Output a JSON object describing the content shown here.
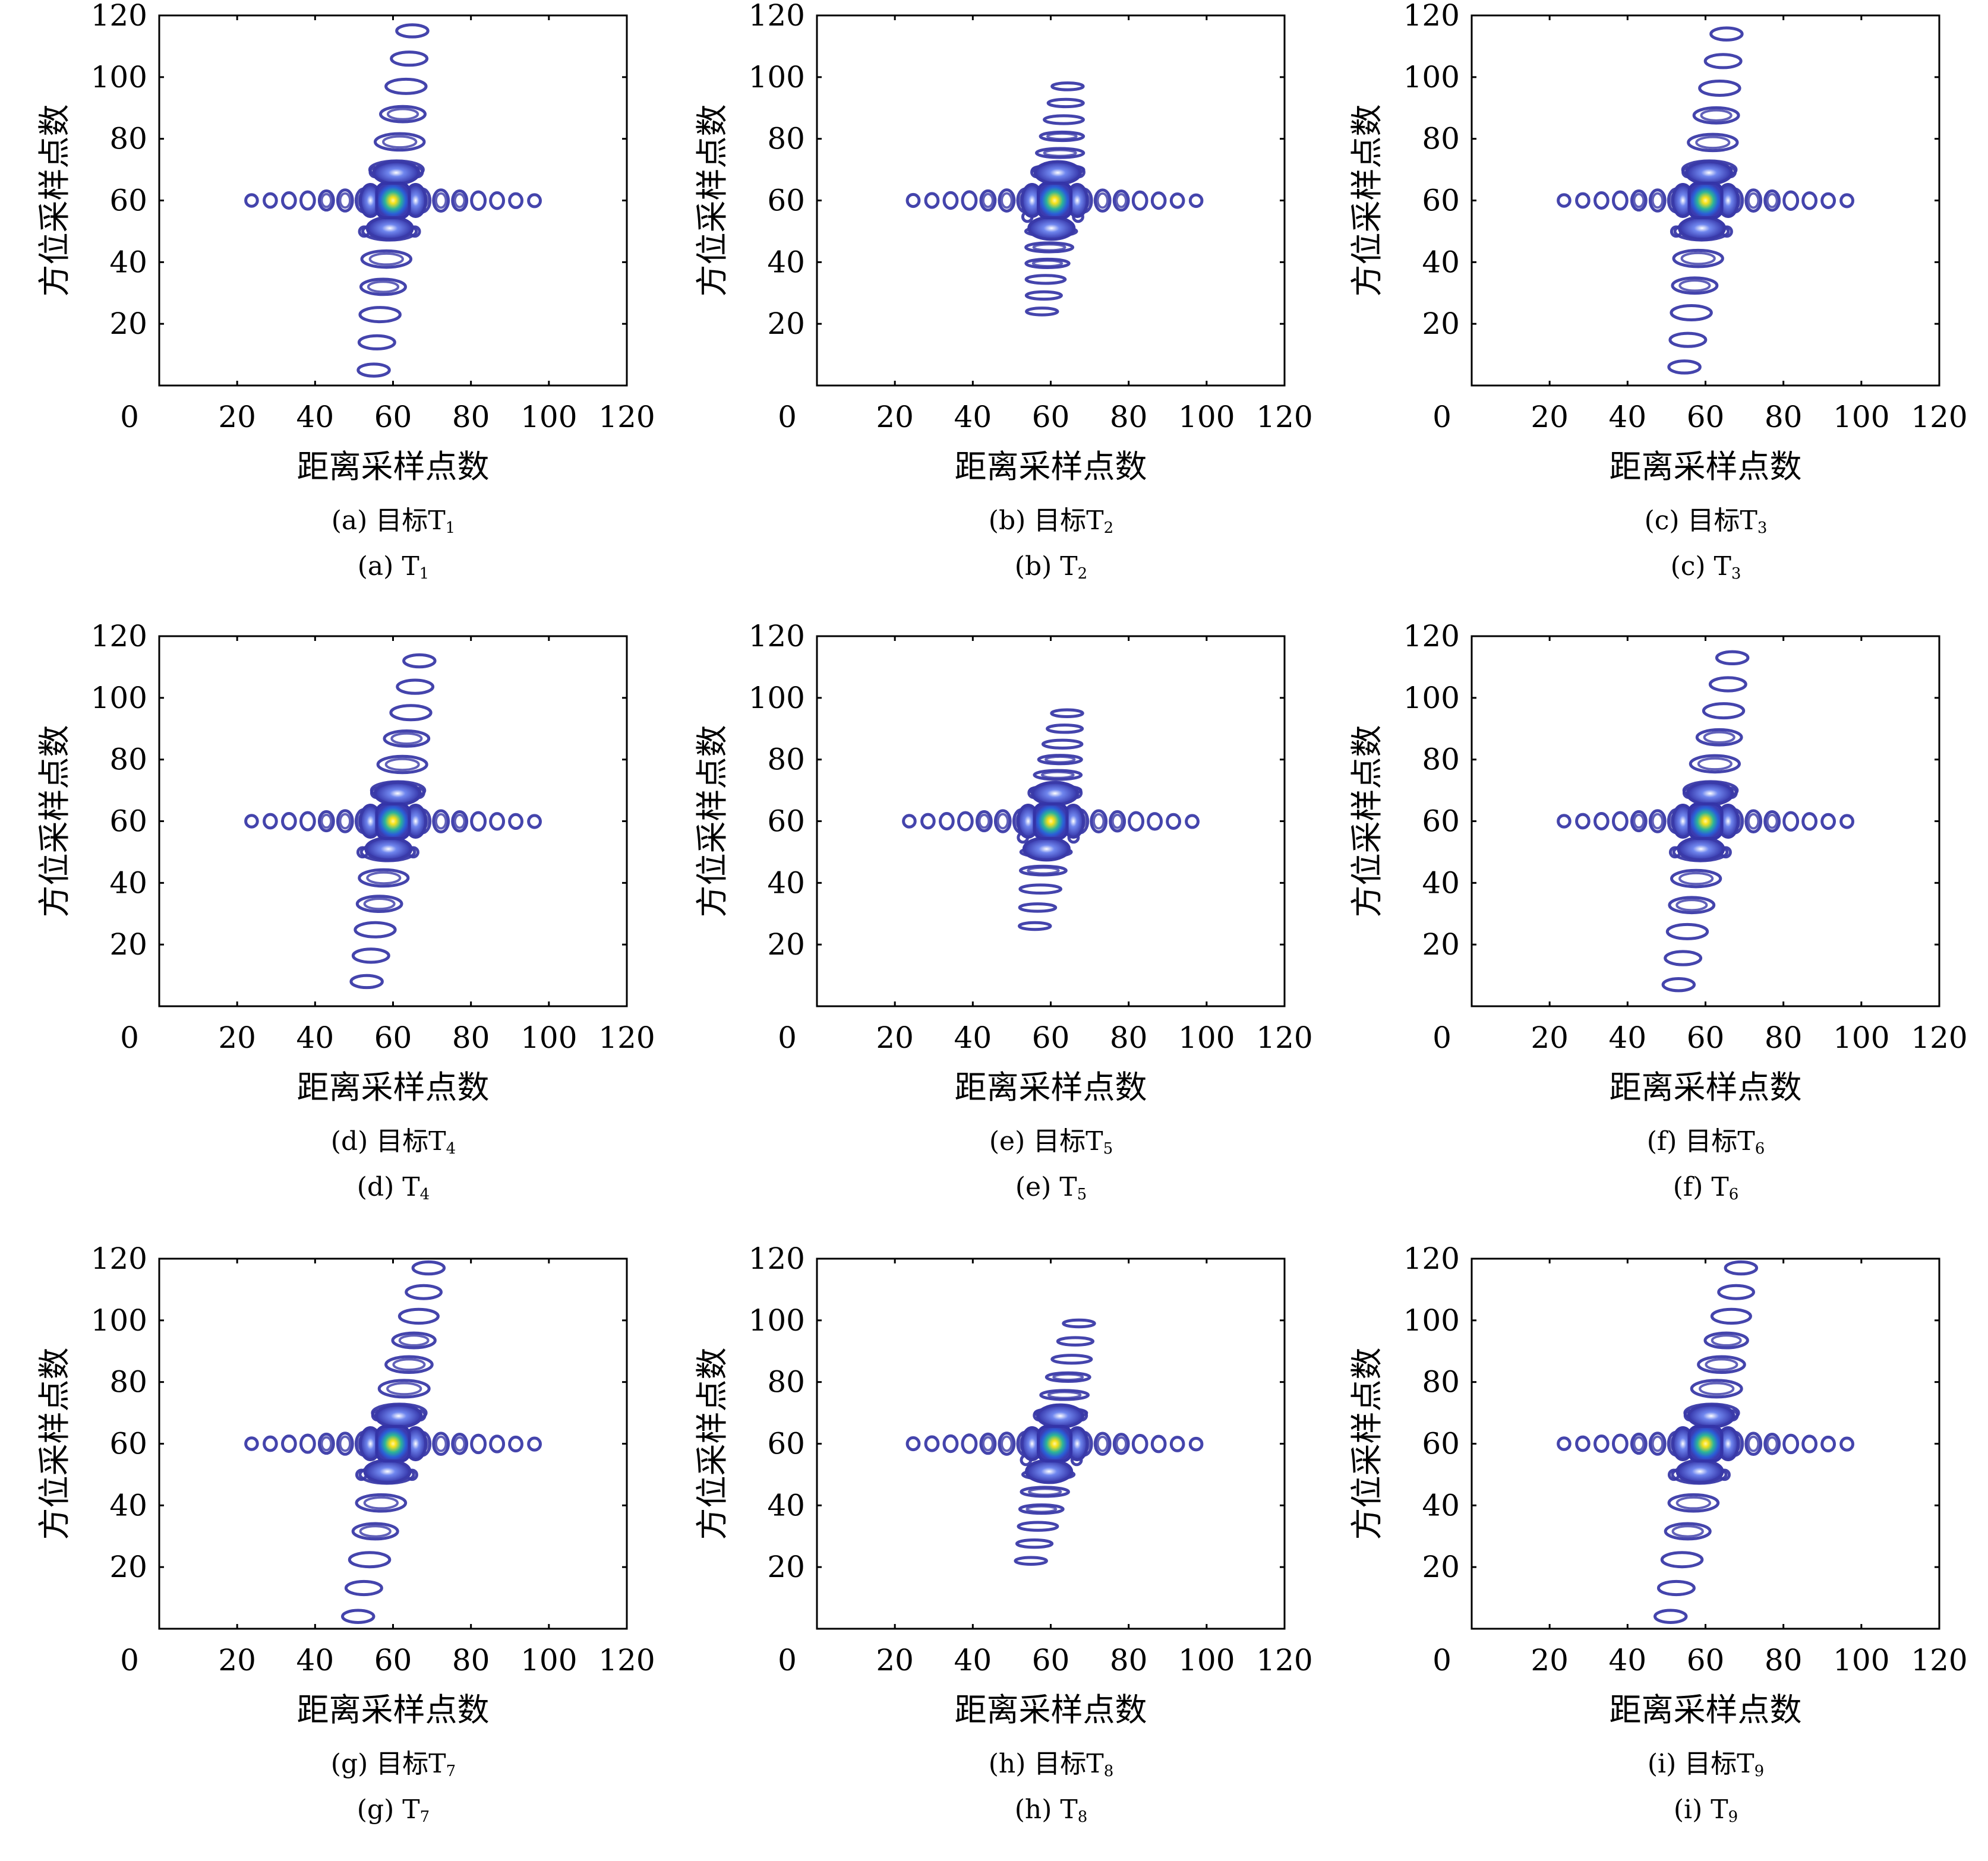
{
  "chart_data": [
    {
      "id": "a",
      "type": "contour",
      "caption_cn": "(a) 目标T",
      "caption_en": "(a) T",
      "sub": "1",
      "xlabel": "距离采样点数",
      "ylabel": "方位采样点数",
      "xlim": [
        0,
        120
      ],
      "ylim": [
        0,
        120
      ],
      "xticks": [
        "0",
        "20",
        "40",
        "60",
        "80",
        "100",
        "120"
      ],
      "yticks": [
        "20",
        "40",
        "60",
        "80",
        "100",
        "120"
      ],
      "peak": [
        60,
        60
      ],
      "azimuth_extent": [
        5,
        115
      ],
      "range_extent": [
        24,
        97
      ],
      "skew": 0.09
    },
    {
      "id": "b",
      "type": "contour",
      "caption_cn": "(b) 目标T",
      "caption_en": "(b) T",
      "sub": "2",
      "xlabel": "距离采样点数",
      "ylabel": "方位采样点数",
      "xlim": [
        0,
        120
      ],
      "ylim": [
        0,
        120
      ],
      "xticks": [
        "0",
        "20",
        "40",
        "60",
        "80",
        "100",
        "120"
      ],
      "yticks": [
        "20",
        "40",
        "60",
        "80",
        "100",
        "120"
      ],
      "peak": [
        61,
        60
      ],
      "azimuth_extent": [
        24,
        97
      ],
      "range_extent": [
        24,
        97
      ],
      "skew": 0.09
    },
    {
      "id": "c",
      "type": "contour",
      "caption_cn": "(c) 目标T",
      "caption_en": "(c) T",
      "sub": "3",
      "xlabel": "距离采样点数",
      "ylabel": "方位采样点数",
      "xlim": [
        0,
        120
      ],
      "ylim": [
        0,
        120
      ],
      "xticks": [
        "0",
        "20",
        "40",
        "60",
        "80",
        "100",
        "120"
      ],
      "yticks": [
        "20",
        "40",
        "60",
        "80",
        "100",
        "120"
      ],
      "peak": [
        60,
        60
      ],
      "azimuth_extent": [
        6,
        114
      ],
      "range_extent": [
        24,
        97
      ],
      "skew": 0.1
    },
    {
      "id": "d",
      "type": "contour",
      "caption_cn": "(d) 目标T",
      "caption_en": "(d) T",
      "sub": "4",
      "xlabel": "距离采样点数",
      "ylabel": "方位采样点数",
      "xlim": [
        0,
        120
      ],
      "ylim": [
        0,
        120
      ],
      "xticks": [
        "0",
        "20",
        "40",
        "60",
        "80",
        "100",
        "120"
      ],
      "yticks": [
        "20",
        "40",
        "60",
        "80",
        "100",
        "120"
      ],
      "peak": [
        60,
        60
      ],
      "azimuth_extent": [
        8,
        112
      ],
      "range_extent": [
        24,
        97
      ],
      "skew": 0.13
    },
    {
      "id": "e",
      "type": "contour",
      "caption_cn": "(e) 目标T",
      "caption_en": "(e) T",
      "sub": "5",
      "xlabel": "距离采样点数",
      "ylabel": "方位采样点数",
      "xlim": [
        0,
        120
      ],
      "ylim": [
        0,
        120
      ],
      "xticks": [
        "0",
        "20",
        "40",
        "60",
        "80",
        "100",
        "120"
      ],
      "yticks": [
        "20",
        "40",
        "60",
        "80",
        "100",
        "120"
      ],
      "peak": [
        60,
        60
      ],
      "azimuth_extent": [
        26,
        95
      ],
      "range_extent": [
        24,
        97
      ],
      "skew": 0.12
    },
    {
      "id": "f",
      "type": "contour",
      "caption_cn": "(f) 目标T",
      "caption_en": "(f) T",
      "sub": "6",
      "xlabel": "距离采样点数",
      "ylabel": "方位采样点数",
      "xlim": [
        0,
        120
      ],
      "ylim": [
        0,
        120
      ],
      "xticks": [
        "0",
        "20",
        "40",
        "60",
        "80",
        "100",
        "120"
      ],
      "yticks": [
        "20",
        "40",
        "60",
        "80",
        "100",
        "120"
      ],
      "peak": [
        60,
        60
      ],
      "azimuth_extent": [
        7,
        113
      ],
      "range_extent": [
        24,
        97
      ],
      "skew": 0.13
    },
    {
      "id": "g",
      "type": "contour",
      "caption_cn": "(g) 目标T",
      "caption_en": "(g) T",
      "sub": "7",
      "xlabel": "距离采样点数",
      "ylabel": "方位采样点数",
      "xlim": [
        0,
        120
      ],
      "ylim": [
        0,
        120
      ],
      "xticks": [
        "0",
        "20",
        "40",
        "60",
        "80",
        "100",
        "120"
      ],
      "yticks": [
        "20",
        "40",
        "60",
        "80",
        "100",
        "120"
      ],
      "peak": [
        60,
        60
      ],
      "azimuth_extent": [
        4,
        117
      ],
      "range_extent": [
        24,
        97
      ],
      "skew": 0.16
    },
    {
      "id": "h",
      "type": "contour",
      "caption_cn": "(h) 目标T",
      "caption_en": "(h) T",
      "sub": "8",
      "xlabel": "距离采样点数",
      "ylabel": "方位采样点数",
      "xlim": [
        0,
        120
      ],
      "ylim": [
        0,
        120
      ],
      "xticks": [
        "0",
        "20",
        "40",
        "60",
        "80",
        "100",
        "120"
      ],
      "yticks": [
        "20",
        "40",
        "60",
        "80",
        "100",
        "120"
      ],
      "peak": [
        61,
        60
      ],
      "azimuth_extent": [
        22,
        99
      ],
      "range_extent": [
        24,
        97
      ],
      "skew": 0.16
    },
    {
      "id": "i",
      "type": "contour",
      "caption_cn": "(i) 目标T",
      "caption_en": "(i) T",
      "sub": "9",
      "xlabel": "距离采样点数",
      "ylabel": "方位采样点数",
      "xlim": [
        0,
        120
      ],
      "ylim": [
        0,
        120
      ],
      "xticks": [
        "0",
        "20",
        "40",
        "60",
        "80",
        "100",
        "120"
      ],
      "yticks": [
        "20",
        "40",
        "60",
        "80",
        "100",
        "120"
      ],
      "peak": [
        60,
        60
      ],
      "azimuth_extent": [
        4,
        117
      ],
      "range_extent": [
        24,
        97
      ],
      "skew": 0.16
    }
  ],
  "colors": {
    "contour": "#3a3aa8",
    "peak_core": "#f7e11a",
    "peak_mid": "#2bb39a",
    "peak_outer": "#2a5fd8",
    "axis": "#000000"
  }
}
